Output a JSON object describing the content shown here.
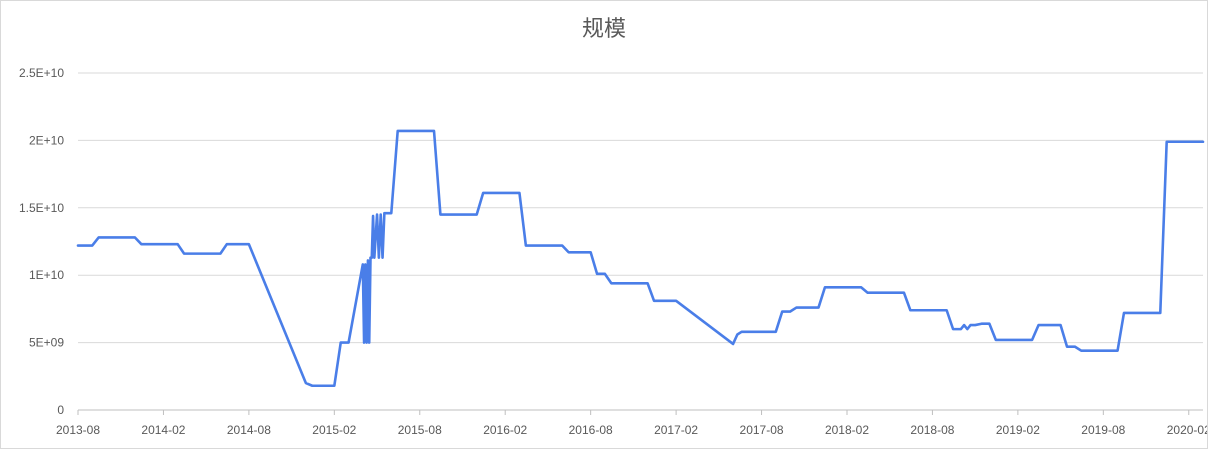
{
  "chart_data": {
    "type": "line",
    "title": "规模",
    "xlabel": "",
    "ylabel": "",
    "ylim": [
      0,
      25000000000
    ],
    "y_ticks": [
      0,
      5000000000,
      10000000000,
      15000000000,
      20000000000,
      25000000000
    ],
    "y_tick_labels": [
      "0",
      "5E+09",
      "1E+10",
      "1.5E+10",
      "2E+10",
      "2.5E+10"
    ],
    "x_tick_labels": [
      "2013-08",
      "2014-02",
      "2014-08",
      "2015-02",
      "2015-08",
      "2016-02",
      "2016-08",
      "2017-02",
      "2017-08",
      "2018-02",
      "2018-08",
      "2019-02",
      "2019-08",
      "2020-02"
    ],
    "xlim": [
      "2013-08",
      "2020-03"
    ],
    "grid": true,
    "legend": "none",
    "line_color": "#4a7ee8",
    "series": [
      {
        "x": [
          "2013-08",
          "2013-09",
          "2013-09",
          "2013-12",
          "2013-12",
          "2014-03",
          "2014-03",
          "2014-06",
          "2014-06",
          "2014-08",
          "2014-12",
          "2014-12",
          "2015-02",
          "2015-02",
          "2015-03",
          "2015-04",
          "2015-04",
          "2015-04",
          "2015-04",
          "2015-04",
          "2015-04",
          "2015-04",
          "2015-04",
          "2015-04",
          "2015-04",
          "2015-05",
          "2015-05",
          "2015-05",
          "2015-05",
          "2015-05",
          "2015-05",
          "2015-05",
          "2015-06",
          "2015-06",
          "2015-09",
          "2015-09",
          "2015-12",
          "2015-12",
          "2016-03",
          "2016-03",
          "2016-06",
          "2016-06",
          "2016-08",
          "2016-08",
          "2016-09",
          "2016-09",
          "2016-12",
          "2016-12",
          "2017-02",
          "2017-06",
          "2017-06",
          "2017-06",
          "2017-09",
          "2017-09",
          "2017-10",
          "2017-10",
          "2017-12",
          "2017-12",
          "2018-03",
          "2018-03",
          "2018-06",
          "2018-06",
          "2018-09",
          "2018-09",
          "2018-10",
          "2018-10",
          "2018-10",
          "2018-10",
          "2018-11",
          "2018-11",
          "2018-12",
          "2018-12",
          "2019-03",
          "2019-03",
          "2019-05",
          "2019-05",
          "2019-06",
          "2019-06",
          "2019-09",
          "2019-09",
          "2019-12",
          "2019-12",
          "2020-03"
        ],
        "values": [
          12200000000,
          12200000000,
          12800000000,
          12800000000,
          12300000000,
          12300000000,
          11600000000,
          11600000000,
          12300000000,
          12300000000,
          2000000000,
          1800000000,
          1800000000,
          5000000000,
          5000000000,
          10800000000,
          5000000000,
          10800000000,
          5000000000,
          11100000000,
          5000000000,
          11300000000,
          11300000000,
          14400000000,
          11300000000,
          14500000000,
          11300000000,
          14500000000,
          11300000000,
          14600000000,
          14600000000,
          14600000000,
          14600000000,
          20700000000,
          20700000000,
          14500000000,
          14500000000,
          16100000000,
          16100000000,
          12200000000,
          12200000000,
          11700000000,
          11700000000,
          10100000000,
          10100000000,
          9400000000,
          9400000000,
          8100000000,
          8100000000,
          4900000000,
          5600000000,
          5800000000,
          5800000000,
          7300000000,
          7300000000,
          7600000000,
          7600000000,
          9100000000,
          9100000000,
          8700000000,
          8700000000,
          7400000000,
          7400000000,
          6000000000,
          6000000000,
          6300000000,
          6000000000,
          6300000000,
          6300000000,
          6400000000,
          6400000000,
          5200000000,
          5200000000,
          6300000000,
          6300000000,
          4700000000,
          4700000000,
          4400000000,
          4400000000,
          7200000000,
          7200000000,
          19900000000,
          19900000000
        ]
      }
    ]
  }
}
